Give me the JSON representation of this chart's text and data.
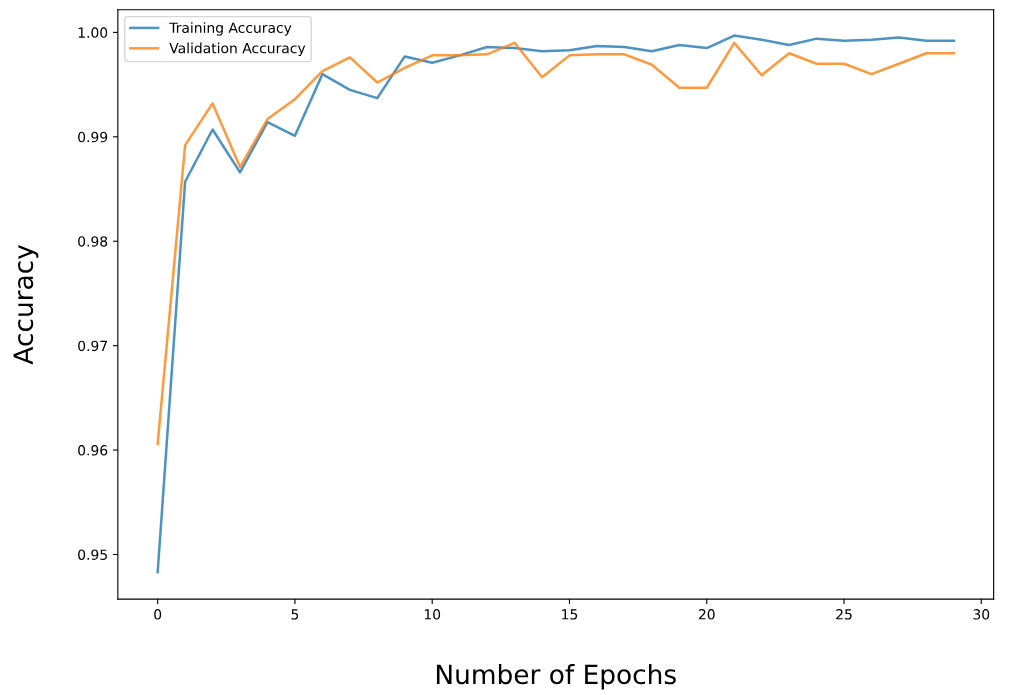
{
  "chart_data": {
    "type": "line",
    "xlabel": "Number of Epochs",
    "ylabel": "Accuracy",
    "x": [
      0,
      1,
      2,
      3,
      4,
      5,
      6,
      7,
      8,
      9,
      10,
      11,
      12,
      13,
      14,
      15,
      16,
      17,
      18,
      19,
      20,
      21,
      22,
      23,
      24,
      25,
      26,
      27,
      28,
      29
    ],
    "series": [
      {
        "name": "Training Accuracy",
        "color": "#1f77b4",
        "values": [
          0.9483,
          0.9857,
          0.9907,
          0.9866,
          0.9914,
          0.9901,
          0.996,
          0.9945,
          0.9937,
          0.9977,
          0.9971,
          0.9978,
          0.9986,
          0.9985,
          0.9982,
          0.9983,
          0.9987,
          0.9986,
          0.9982,
          0.9988,
          0.9985,
          0.9997,
          0.9993,
          0.9988,
          0.9994,
          0.9992,
          0.9993,
          0.9995,
          0.9992,
          0.9992
        ]
      },
      {
        "name": "Validation Accuracy",
        "color": "#ff7f0e",
        "values": [
          0.9606,
          0.9892,
          0.9932,
          0.9871,
          0.9917,
          0.9936,
          0.9963,
          0.9976,
          0.9952,
          0.9966,
          0.9978,
          0.9978,
          0.9979,
          0.999,
          0.9957,
          0.9978,
          0.9979,
          0.9979,
          0.9969,
          0.9947,
          0.9947,
          0.999,
          0.9959,
          0.998,
          0.997,
          0.997,
          0.996,
          0.997,
          0.998,
          0.998
        ]
      }
    ],
    "xlim": [
      -1.45,
      30.45
    ],
    "ylim": [
      0.94573,
      1.00217
    ],
    "xticks": [
      0,
      5,
      10,
      15,
      20,
      25,
      30
    ],
    "yticks": [
      {
        "value": 0.95,
        "label": "0.95"
      },
      {
        "value": 0.96,
        "label": "0.96"
      },
      {
        "value": 0.97,
        "label": "0.97"
      },
      {
        "value": 0.98,
        "label": "0.98"
      },
      {
        "value": 0.99,
        "label": "0.99"
      },
      {
        "value": 1.0,
        "label": "1.00"
      }
    ],
    "legend": "top left",
    "grid": false,
    "marker": "none",
    "line_style": "solid"
  }
}
